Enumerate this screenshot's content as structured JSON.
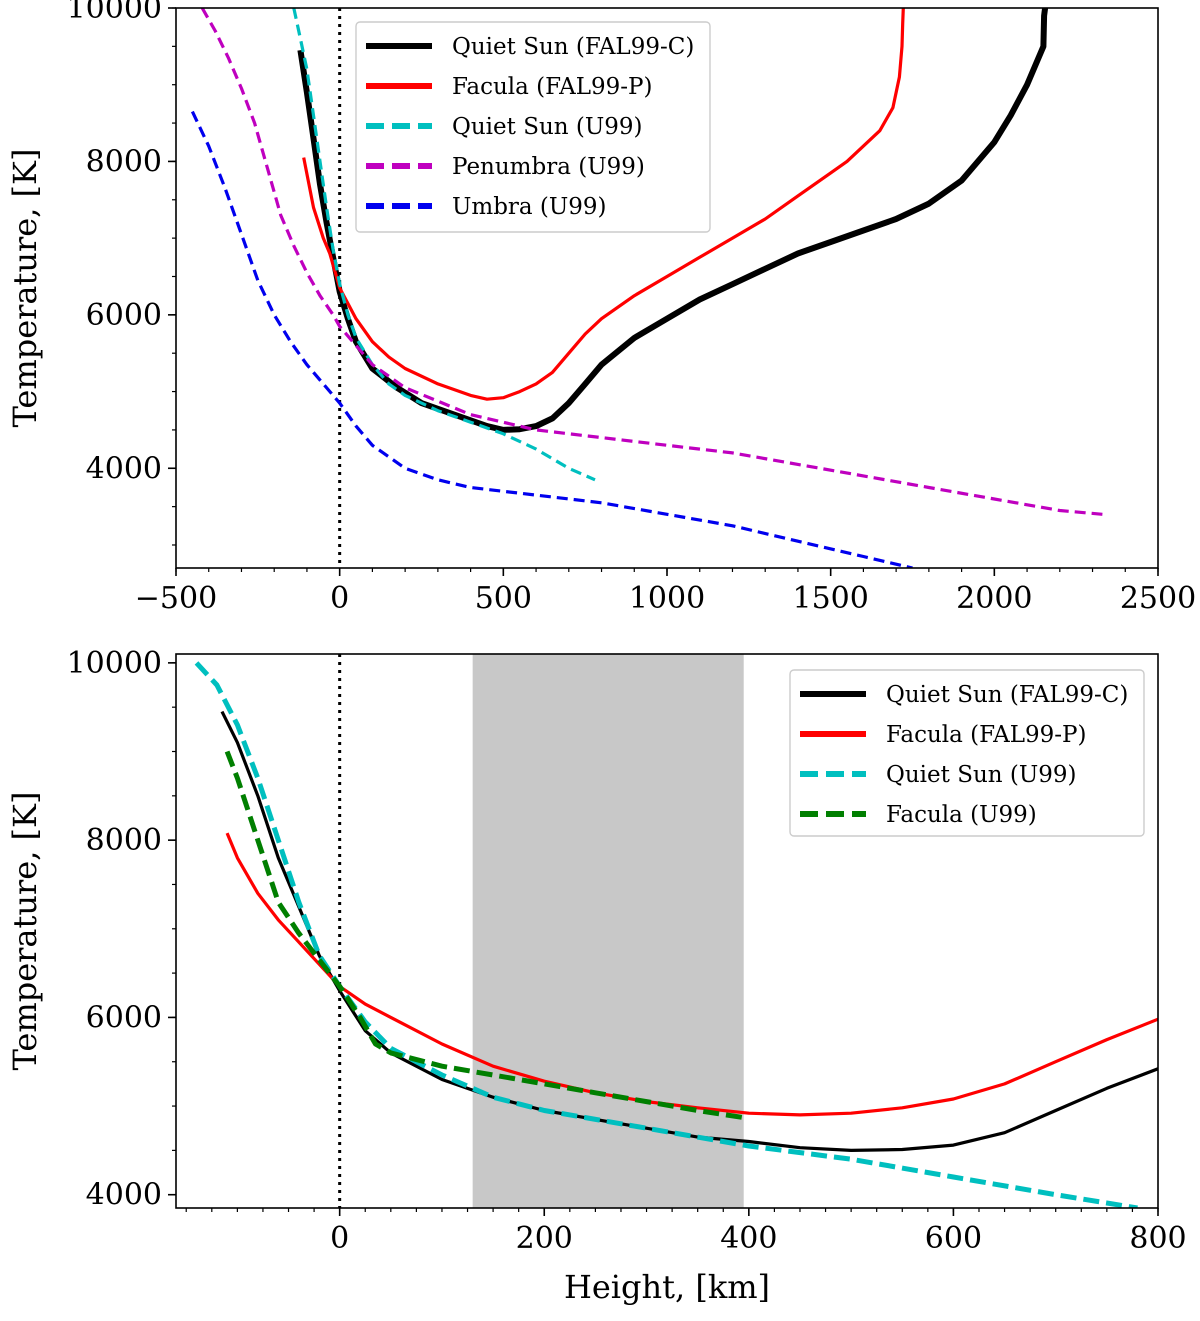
{
  "chart_data": [
    {
      "type": "line",
      "xlabel": "",
      "ylabel": "Temperature, [K]",
      "xlim": [
        -500,
        2500
      ],
      "ylim": [
        2700,
        10000
      ],
      "xticks": [
        -500,
        0,
        500,
        1000,
        1500,
        2000,
        2500
      ],
      "xtick_labels": [
        "−500",
        "0",
        "500",
        "1000",
        "1500",
        "2000",
        "2500"
      ],
      "yticks": [
        4000,
        6000,
        8000,
        10000
      ],
      "ytick_labels": [
        "4000",
        "6000",
        "8000",
        "10000"
      ],
      "vline_x": 0,
      "legend_position": "top-center",
      "series": [
        {
          "name": "Quiet Sun (FAL99-C)",
          "color": "#000000",
          "style": "solid",
          "weight": "thick",
          "x": [
            -120,
            -100,
            -80,
            -60,
            -40,
            -20,
            0,
            25,
            50,
            100,
            175,
            250,
            350,
            450,
            500,
            550,
            600,
            650,
            700,
            750,
            800,
            900,
            1000,
            1100,
            1200,
            1300,
            1400,
            1500,
            1600,
            1700,
            1800,
            1900,
            2000,
            2050,
            2100,
            2130,
            2150,
            2152,
            2155
          ],
          "y": [
            9450,
            8900,
            8300,
            7700,
            7200,
            6750,
            6300,
            5950,
            5650,
            5300,
            5050,
            4850,
            4700,
            4550,
            4500,
            4510,
            4550,
            4650,
            4850,
            5100,
            5350,
            5700,
            5950,
            6200,
            6400,
            6600,
            6800,
            6950,
            7100,
            7250,
            7450,
            7750,
            8250,
            8600,
            9000,
            9300,
            9500,
            9900,
            10000
          ]
        },
        {
          "name": "Facula (FAL99-P)",
          "color": "#ff0000",
          "style": "solid",
          "weight": "normal",
          "x": [
            -110,
            -80,
            -50,
            -30,
            0,
            50,
            100,
            150,
            200,
            300,
            400,
            450,
            500,
            550,
            600,
            650,
            700,
            750,
            800,
            900,
            1000,
            1100,
            1200,
            1300,
            1400,
            1500,
            1550,
            1600,
            1650,
            1690,
            1710,
            1718,
            1720,
            1722
          ],
          "y": [
            8050,
            7400,
            7000,
            6800,
            6350,
            5950,
            5650,
            5450,
            5300,
            5100,
            4950,
            4900,
            4920,
            5000,
            5100,
            5250,
            5500,
            5750,
            5950,
            6250,
            6500,
            6750,
            7000,
            7250,
            7550,
            7850,
            8000,
            8200,
            8400,
            8700,
            9100,
            9500,
            9800,
            10000
          ]
        },
        {
          "name": "Quiet Sun (U99)",
          "color": "#00bfbf",
          "style": "dashed",
          "weight": "normal",
          "x": [
            -140,
            -120,
            -100,
            -80,
            -60,
            -40,
            -20,
            0,
            25,
            50,
            100,
            150,
            200,
            300,
            400,
            500,
            600,
            700,
            780
          ],
          "y": [
            10000,
            9600,
            9200,
            8600,
            8000,
            7400,
            6850,
            6400,
            6000,
            5700,
            5350,
            5100,
            4950,
            4750,
            4600,
            4450,
            4250,
            4000,
            3850
          ]
        },
        {
          "name": "Penumbra (U99)",
          "color": "#bf00bf",
          "style": "dashed",
          "weight": "normal",
          "x": [
            -420,
            -380,
            -340,
            -300,
            -260,
            -220,
            -180,
            -140,
            -100,
            -60,
            -20,
            0,
            50,
            100,
            200,
            400,
            600,
            800,
            1000,
            1200,
            1400,
            1600,
            1800,
            2000,
            2200,
            2330
          ],
          "y": [
            10000,
            9700,
            9350,
            8950,
            8500,
            7900,
            7300,
            6900,
            6550,
            6250,
            6000,
            5850,
            5600,
            5350,
            5050,
            4700,
            4500,
            4400,
            4300,
            4200,
            4050,
            3900,
            3750,
            3600,
            3450,
            3400
          ]
        },
        {
          "name": "Umbra (U99)",
          "color": "#0000ee",
          "style": "dashed",
          "weight": "normal",
          "x": [
            -450,
            -400,
            -350,
            -300,
            -250,
            -200,
            -150,
            -100,
            -50,
            0,
            50,
            100,
            200,
            300,
            400,
            500,
            600,
            800,
            1000,
            1200,
            1400,
            1600,
            1750
          ],
          "y": [
            8650,
            8200,
            7650,
            7050,
            6450,
            6000,
            5650,
            5350,
            5100,
            4850,
            4550,
            4300,
            4000,
            3850,
            3750,
            3700,
            3650,
            3550,
            3400,
            3250,
            3050,
            2850,
            2700
          ]
        }
      ]
    },
    {
      "type": "line",
      "xlabel": "Height, [km]",
      "ylabel": "Temperature, [K]",
      "xlim": [
        -160,
        800
      ],
      "ylim": [
        3850,
        10100
      ],
      "xticks": [
        0,
        200,
        400,
        600,
        800
      ],
      "xtick_labels": [
        "0",
        "200",
        "400",
        "600",
        "800"
      ],
      "yticks": [
        4000,
        6000,
        8000,
        10000
      ],
      "ytick_labels": [
        "4000",
        "6000",
        "8000",
        "10000"
      ],
      "vline_x": 0,
      "shaded_region": [
        130,
        395
      ],
      "legend_position": "top-right",
      "series": [
        {
          "name": "Quiet Sun (FAL99-C)",
          "color": "#000000",
          "style": "solid",
          "weight": "normal",
          "x": [
            -115,
            -100,
            -80,
            -60,
            -40,
            -20,
            0,
            25,
            50,
            100,
            150,
            200,
            250,
            300,
            350,
            400,
            450,
            500,
            550,
            600,
            650,
            700,
            750,
            800
          ],
          "y": [
            9450,
            9100,
            8500,
            7800,
            7250,
            6700,
            6300,
            5850,
            5600,
            5300,
            5100,
            4950,
            4850,
            4750,
            4650,
            4600,
            4530,
            4500,
            4510,
            4560,
            4700,
            4950,
            5200,
            5420
          ]
        },
        {
          "name": "Facula (FAL99-P)",
          "color": "#ff0000",
          "style": "solid",
          "weight": "normal",
          "x": [
            -110,
            -100,
            -80,
            -60,
            -40,
            -20,
            0,
            25,
            50,
            100,
            150,
            200,
            250,
            300,
            350,
            400,
            450,
            500,
            550,
            600,
            650,
            700,
            750,
            800
          ],
          "y": [
            8080,
            7800,
            7400,
            7100,
            6850,
            6600,
            6350,
            6150,
            6000,
            5700,
            5450,
            5280,
            5150,
            5050,
            4980,
            4920,
            4900,
            4920,
            4980,
            5080,
            5250,
            5500,
            5750,
            5980
          ]
        },
        {
          "name": "Quiet Sun (U99)",
          "color": "#00bfbf",
          "style": "dashed",
          "weight": "thick",
          "x": [
            -140,
            -120,
            -100,
            -80,
            -60,
            -40,
            -20,
            0,
            25,
            50,
            100,
            150,
            200,
            300,
            400,
            500,
            600,
            700,
            780
          ],
          "y": [
            10000,
            9750,
            9300,
            8700,
            8000,
            7300,
            6700,
            6350,
            5950,
            5650,
            5350,
            5100,
            4950,
            4750,
            4550,
            4400,
            4200,
            4000,
            3850
          ]
        },
        {
          "name": "Facula (U99)",
          "color": "#007f00",
          "style": "dashed",
          "weight": "thick",
          "x": [
            -110,
            -100,
            -80,
            -60,
            -40,
            -20,
            0,
            20,
            35,
            50,
            100,
            150,
            200,
            250,
            300,
            350,
            395
          ],
          "y": [
            9000,
            8700,
            8000,
            7300,
            6950,
            6650,
            6350,
            6000,
            5700,
            5600,
            5450,
            5350,
            5250,
            5150,
            5050,
            4950,
            4870
          ]
        }
      ]
    }
  ]
}
